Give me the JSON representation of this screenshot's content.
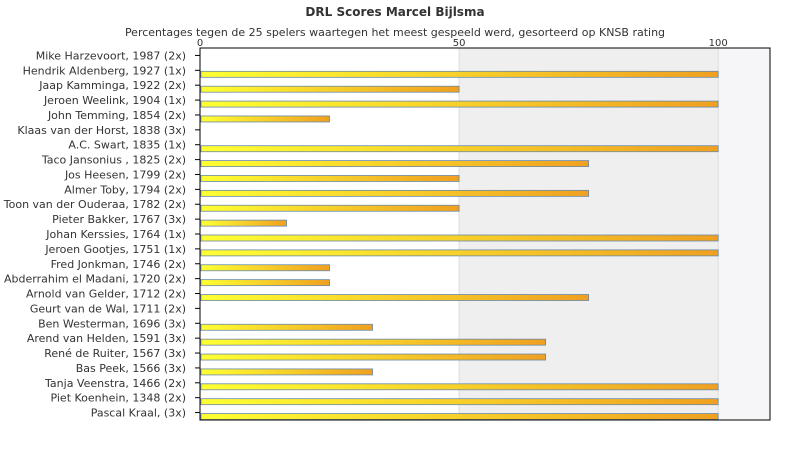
{
  "chart_data": {
    "type": "bar",
    "orientation": "horizontal",
    "title": "DRL Scores Marcel Bijlsma",
    "subtitle": "Percentages tegen de 25 spelers waartegen het meest gespeeld werd, gesorteerd op KNSB rating",
    "xlim": [
      0,
      110
    ],
    "xticks": [
      0,
      50,
      100
    ],
    "grid": true,
    "categories": [
      "Mike Harzevoort, 1987 (2x)",
      "Hendrik Aldenberg, 1927 (1x)",
      "Jaap Kamminga, 1922 (2x)",
      "Jeroen Weelink, 1904 (1x)",
      "John Temming, 1854 (2x)",
      "Klaas van der Horst, 1838 (3x)",
      "A.C. Swart, 1835 (1x)",
      "Taco Jansonius , 1825 (2x)",
      "Jos Heesen, 1799 (2x)",
      "Almer Toby, 1794 (2x)",
      "Toon van der Ouderaa, 1782 (2x)",
      "Pieter Bakker, 1767 (3x)",
      "Johan Kerssies, 1764 (1x)",
      "Jeroen Gootjes, 1751 (1x)",
      "Fred Jonkman, 1746 (2x)",
      "Abderrahim el Madani, 1720 (2x)",
      "Arnold van Gelder, 1712 (2x)",
      "Geurt van de Wal, 1711 (2x)",
      "Ben Westerman, 1696 (3x)",
      "Arend van Helden, 1591 (3x)",
      "René de Ruiter, 1567 (3x)",
      "Bas Peek, 1566 (3x)",
      "Tanja Veenstra, 1466 (2x)",
      "Piet Koenhein, 1348 (2x)",
      "Pascal Kraal,  (3x)"
    ],
    "values": [
      0,
      100,
      50,
      100,
      25,
      0,
      100,
      75,
      50,
      75,
      50,
      16.7,
      100,
      100,
      25,
      25,
      75,
      0,
      33.3,
      66.7,
      66.7,
      33.3,
      100,
      100,
      100
    ],
    "colors": {
      "bar_start": "#ffff33",
      "bar_end": "#f0a020",
      "bar_stroke": "#6a8aa8",
      "band": "#efefef",
      "frame": "#000000"
    }
  }
}
